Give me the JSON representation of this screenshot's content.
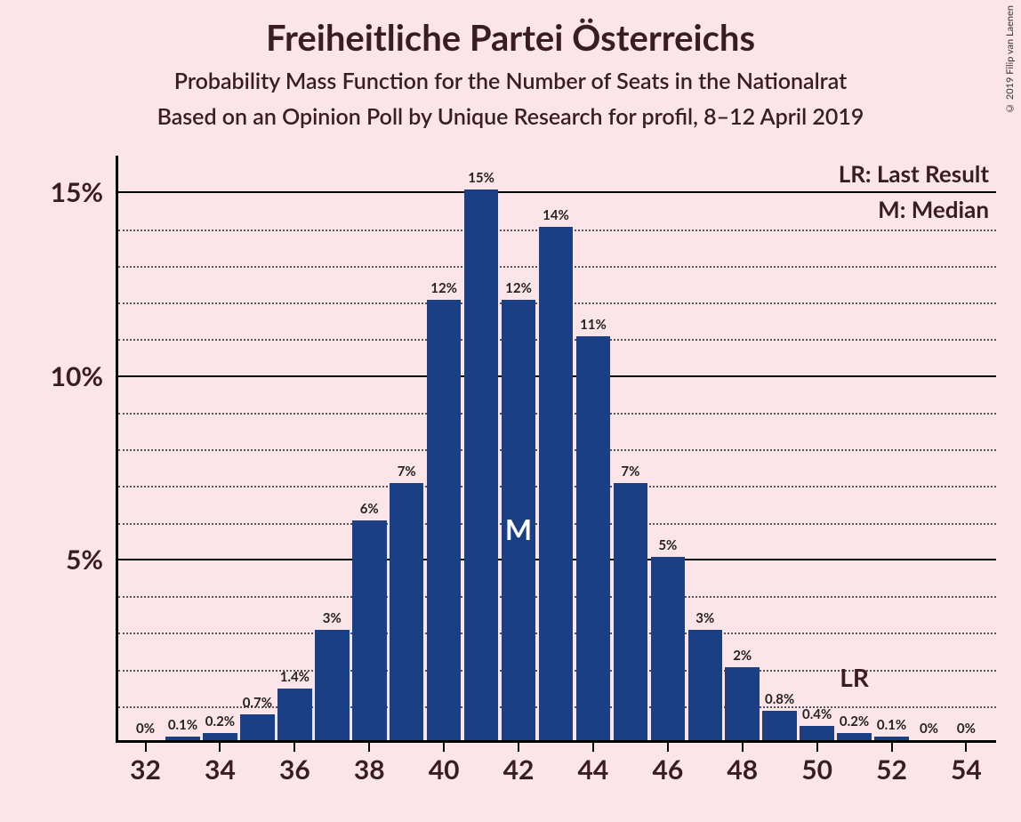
{
  "title": "Freiheitliche Partei Österreichs",
  "subtitle1": "Probability Mass Function for the Number of Seats in the Nationalrat",
  "subtitle2": "Based on an Opinion Poll by Unique Research for profil, 8–12 April 2019",
  "copyright": "© 2019 Filip van Laenen",
  "legend": {
    "lr": "LR: Last Result",
    "m": "M: Median"
  },
  "chart": {
    "type": "bar",
    "background_color": "#fce5e8",
    "bar_color": "#1a3f85",
    "bar_width_ratio": 0.92,
    "text_color": "#3a1d22",
    "axis_color": "#000000",
    "grid_major_color": "#000000",
    "grid_minor_color": "#555555",
    "title_fontsize": 40,
    "subtitle_fontsize": 25,
    "axis_label_fontsize": 30,
    "bar_label_fontsize": 15,
    "x": {
      "min": 31.2,
      "max": 54.8,
      "tick_start": 32,
      "tick_step": 2,
      "tick_end": 54
    },
    "y": {
      "min": 0,
      "max": 16,
      "major_ticks": [
        5,
        10,
        15
      ],
      "minor_step": 1
    },
    "bars": [
      {
        "seat": 32,
        "value": 0,
        "label": "0%"
      },
      {
        "seat": 33,
        "value": 0.1,
        "label": "0.1%"
      },
      {
        "seat": 34,
        "value": 0.2,
        "label": "0.2%"
      },
      {
        "seat": 35,
        "value": 0.7,
        "label": "0.7%"
      },
      {
        "seat": 36,
        "value": 1.4,
        "label": "1.4%"
      },
      {
        "seat": 37,
        "value": 3,
        "label": "3%"
      },
      {
        "seat": 38,
        "value": 6,
        "label": "6%"
      },
      {
        "seat": 39,
        "value": 7,
        "label": "7%"
      },
      {
        "seat": 40,
        "value": 12,
        "label": "12%"
      },
      {
        "seat": 41,
        "value": 15,
        "label": "15%"
      },
      {
        "seat": 42,
        "value": 12,
        "label": "12%"
      },
      {
        "seat": 43,
        "value": 14,
        "label": "14%"
      },
      {
        "seat": 44,
        "value": 11,
        "label": "11%"
      },
      {
        "seat": 45,
        "value": 7,
        "label": "7%"
      },
      {
        "seat": 46,
        "value": 5,
        "label": "5%"
      },
      {
        "seat": 47,
        "value": 3,
        "label": "3%"
      },
      {
        "seat": 48,
        "value": 2,
        "label": "2%"
      },
      {
        "seat": 49,
        "value": 0.8,
        "label": "0.8%"
      },
      {
        "seat": 50,
        "value": 0.4,
        "label": "0.4%"
      },
      {
        "seat": 51,
        "value": 0.2,
        "label": "0.2%"
      },
      {
        "seat": 52,
        "value": 0.1,
        "label": "0.1%"
      },
      {
        "seat": 53,
        "value": 0,
        "label": "0%"
      },
      {
        "seat": 54,
        "value": 0,
        "label": "0%"
      }
    ],
    "median_marker": {
      "seat": 42,
      "label": "M"
    },
    "lr_marker": {
      "seat": 51,
      "label": "LR"
    }
  }
}
